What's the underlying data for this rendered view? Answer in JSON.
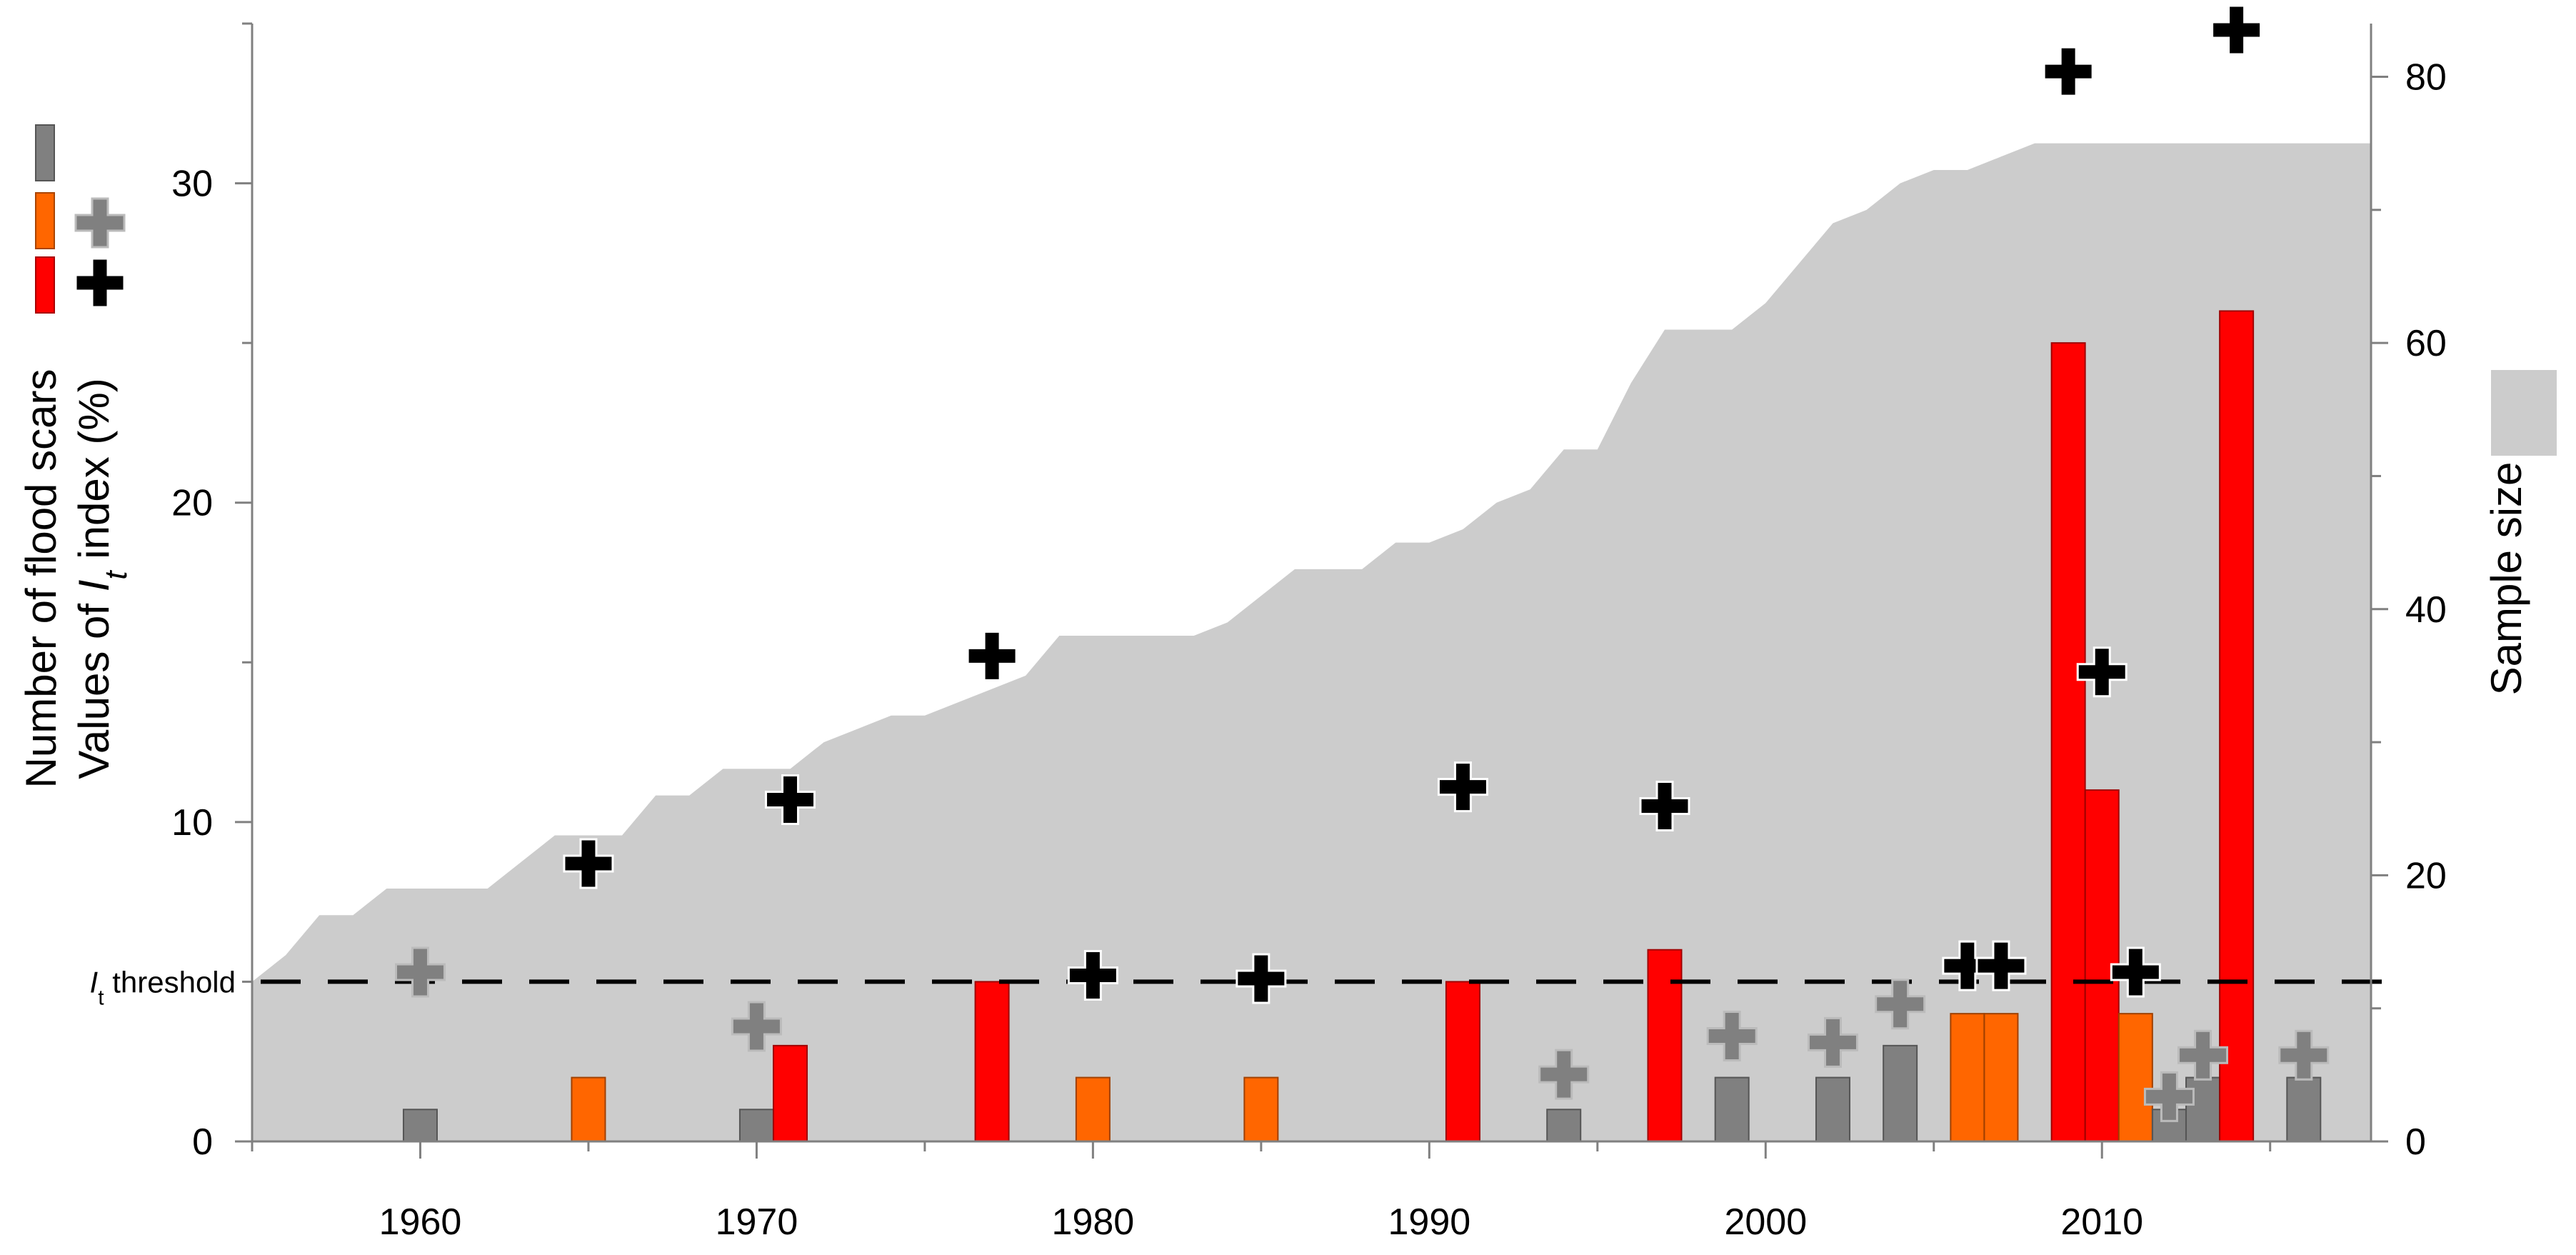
{
  "chart_data": {
    "type": "bar",
    "xlim": [
      1955,
      2018
    ],
    "ylim": [
      0,
      35
    ],
    "y2lim": [
      0,
      84
    ],
    "x_ticks": [
      "1960",
      "1970",
      "1980",
      "1990",
      "2000",
      "2010"
    ],
    "x_tick_values": [
      1960,
      1970,
      1980,
      1990,
      2000,
      2010
    ],
    "y_ticks": [
      "0",
      "10",
      "20",
      "30"
    ],
    "y_tick_values": [
      0,
      10,
      20,
      30
    ],
    "y2_ticks": [
      "0",
      "20",
      "40",
      "60",
      "80"
    ],
    "y2_tick_values": [
      0,
      20,
      40,
      60,
      80
    ],
    "ylabel_line1": "Number of flood scars",
    "ylabel_line2_prefix": "Values of ",
    "ylabel_line2_italic": "I",
    "ylabel_line2_sub": "t",
    "ylabel_line2_suffix": " index (%)",
    "y2label": "Sample size",
    "threshold": {
      "value": 5,
      "label_italic": "I",
      "label_sub": "t",
      "label_suffix": " threshold"
    },
    "colors": {
      "gray_bar": "#808080",
      "orange_bar": "#ff6600",
      "red_bar": "#ff0000",
      "gray_plus": "#808080",
      "black_plus": "#000000",
      "sample_area": "#cccccc"
    },
    "sample_size": {
      "x": [
        1955,
        1956,
        1957,
        1958,
        1959,
        1960,
        1961,
        1962,
        1963,
        1964,
        1965,
        1966,
        1967,
        1968,
        1969,
        1970,
        1971,
        1972,
        1973,
        1974,
        1975,
        1976,
        1977,
        1978,
        1979,
        1980,
        1981,
        1982,
        1983,
        1984,
        1985,
        1986,
        1987,
        1988,
        1989,
        1990,
        1991,
        1992,
        1993,
        1994,
        1995,
        1996,
        1997,
        1998,
        1999,
        2000,
        2001,
        2002,
        2003,
        2004,
        2005,
        2006,
        2007,
        2008,
        2009,
        2010,
        2011,
        2012,
        2013,
        2014,
        2015,
        2016,
        2017,
        2018
      ],
      "values": [
        12,
        14,
        17,
        17,
        19,
        19,
        19,
        19,
        21,
        23,
        23,
        23,
        26,
        26,
        28,
        28,
        28,
        30,
        31,
        32,
        32,
        33,
        34,
        35,
        38,
        38,
        38,
        38,
        38,
        39,
        41,
        43,
        43,
        43,
        45,
        45,
        46,
        48,
        49,
        52,
        52,
        57,
        61,
        61,
        61,
        63,
        66,
        69,
        70,
        72,
        73,
        73,
        74,
        75,
        75,
        75,
        75,
        75,
        75,
        75,
        75,
        75,
        75,
        75
      ]
    },
    "bars": [
      {
        "x": 1960,
        "value": 1,
        "color": "gray"
      },
      {
        "x": 1965,
        "value": 2,
        "color": "orange"
      },
      {
        "x": 1970,
        "value": 1,
        "color": "gray"
      },
      {
        "x": 1971,
        "value": 3,
        "color": "red"
      },
      {
        "x": 1977,
        "value": 5,
        "color": "red"
      },
      {
        "x": 1980,
        "value": 2,
        "color": "orange"
      },
      {
        "x": 1985,
        "value": 2,
        "color": "orange"
      },
      {
        "x": 1991,
        "value": 5,
        "color": "red"
      },
      {
        "x": 1994,
        "value": 1,
        "color": "gray"
      },
      {
        "x": 1997,
        "value": 6,
        "color": "red"
      },
      {
        "x": 1999,
        "value": 2,
        "color": "gray"
      },
      {
        "x": 2002,
        "value": 2,
        "color": "gray"
      },
      {
        "x": 2004,
        "value": 3,
        "color": "gray"
      },
      {
        "x": 2006,
        "value": 4,
        "color": "orange"
      },
      {
        "x": 2007,
        "value": 4,
        "color": "orange"
      },
      {
        "x": 2009,
        "value": 25,
        "color": "red"
      },
      {
        "x": 2010,
        "value": 11,
        "color": "red"
      },
      {
        "x": 2011,
        "value": 4,
        "color": "orange"
      },
      {
        "x": 2012,
        "value": 1,
        "color": "gray"
      },
      {
        "x": 2013,
        "value": 2,
        "color": "gray"
      },
      {
        "x": 2014,
        "value": 26,
        "color": "red"
      },
      {
        "x": 2016,
        "value": 2,
        "color": "gray"
      }
    ],
    "index_points": [
      {
        "x": 1960,
        "value": 5.3,
        "color": "gray"
      },
      {
        "x": 1965,
        "value": 8.7,
        "color": "black"
      },
      {
        "x": 1970,
        "value": 3.6,
        "color": "gray"
      },
      {
        "x": 1971,
        "value": 10.7,
        "color": "black"
      },
      {
        "x": 1977,
        "value": 15.2,
        "color": "black"
      },
      {
        "x": 1980,
        "value": 5.2,
        "color": "black"
      },
      {
        "x": 1985,
        "value": 5.1,
        "color": "black"
      },
      {
        "x": 1991,
        "value": 11.1,
        "color": "black"
      },
      {
        "x": 1994,
        "value": 2.1,
        "color": "gray"
      },
      {
        "x": 1997,
        "value": 10.5,
        "color": "black"
      },
      {
        "x": 1999,
        "value": 3.3,
        "color": "gray"
      },
      {
        "x": 2002,
        "value": 3.1,
        "color": "gray"
      },
      {
        "x": 2004,
        "value": 4.3,
        "color": "gray"
      },
      {
        "x": 2006,
        "value": 5.5,
        "color": "black"
      },
      {
        "x": 2007,
        "value": 5.5,
        "color": "black"
      },
      {
        "x": 2009,
        "value": 33.5,
        "color": "black"
      },
      {
        "x": 2010,
        "value": 14.7,
        "color": "black"
      },
      {
        "x": 2011,
        "value": 5.3,
        "color": "black"
      },
      {
        "x": 2012,
        "value": 1.4,
        "color": "gray"
      },
      {
        "x": 2013,
        "value": 2.7,
        "color": "gray"
      },
      {
        "x": 2014,
        "value": 34.8,
        "color": "black"
      },
      {
        "x": 2016,
        "value": 2.7,
        "color": "gray"
      }
    ]
  }
}
